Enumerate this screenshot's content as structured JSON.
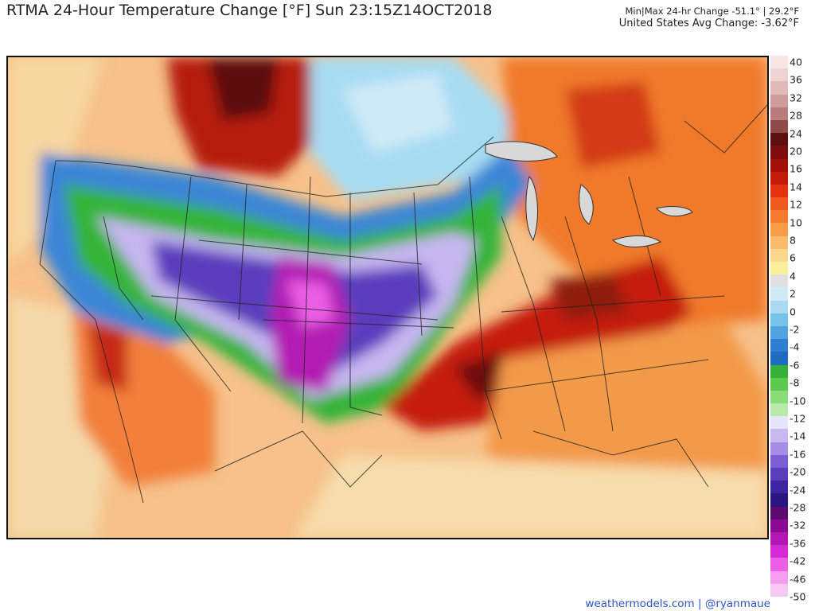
{
  "header": {
    "title": "RTMA 24-Hour Temperature Change [°F]  Sun 23:15Z14OCT2018",
    "minmax": "Min|Max 24-hr Change -51.1°  |  29.2°F",
    "avg": "United States Avg Change: -3.62°F"
  },
  "colorbar": {
    "labels": [
      "40",
      "36",
      "32",
      "28",
      "24",
      "20",
      "16",
      "14",
      "12",
      "10",
      "8",
      "6",
      "4",
      "2",
      "0",
      "-2",
      "-4",
      "-6",
      "-8",
      "-10",
      "-12",
      "-14",
      "-16",
      "-20",
      "-24",
      "-28",
      "-32",
      "-36",
      "-42",
      "-46",
      "-50"
    ],
    "colors": [
      "#f8e6e6",
      "#efd2d2",
      "#e2b9b9",
      "#cf9c9c",
      "#b97b7b",
      "#8f4a4a",
      "#5c1010",
      "#7d0e0e",
      "#a11108",
      "#c61a08",
      "#e2320e",
      "#f05a1c",
      "#f47b2e",
      "#f89c48",
      "#fabb6a",
      "#fbd88e",
      "#fcef9a",
      "#e0e0e0",
      "#cfeaf7",
      "#a9daf1",
      "#76c3ea",
      "#4ea3e0",
      "#2d7fd1",
      "#1f6bc2",
      "#33b236",
      "#5ccb4d",
      "#8ade78",
      "#b8eba9",
      "#e6e6fa",
      "#c7b8f2",
      "#a48de6",
      "#7a5fd4",
      "#5a3cbd",
      "#3b25a0",
      "#2a1680",
      "#5c0a6e",
      "#8a0c92",
      "#b316b3",
      "#d52ad5",
      "#ea5fe6",
      "#f39cf0",
      "#f8c8f5"
    ]
  },
  "legend": {
    "avg": "United States Avg Change: -3.62°F"
  },
  "map": {
    "colors": {
      "hot_dark": "#5c0f0f",
      "hot": "#b31b0c",
      "warm": "#f07a2a",
      "mild": "#f9c07a",
      "neutral": "#e8e0c0",
      "cool": "#9dd6f0",
      "cold": "#3a86d6",
      "green": "#34b437",
      "lavender": "#c6b6f0",
      "purple": "#5a3cbd",
      "magenta": "#b21ab2"
    }
  },
  "credit": "weathermodels.com | @ryanmaue"
}
